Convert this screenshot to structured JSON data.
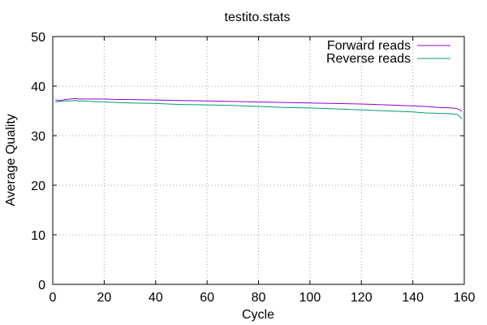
{
  "chart_data": {
    "type": "line",
    "title": "testito.stats",
    "xlabel": "Cycle",
    "ylabel": "Average Quality",
    "xlim": [
      0,
      160
    ],
    "ylim": [
      0,
      50
    ],
    "x_ticks": [
      0,
      20,
      40,
      60,
      80,
      100,
      120,
      140,
      160
    ],
    "y_ticks": [
      0,
      10,
      20,
      30,
      40,
      50
    ],
    "x_tick_labels": [
      "0",
      "20",
      "40",
      "60",
      "80",
      "100",
      "120",
      "140",
      "160"
    ],
    "y_tick_labels": [
      "0",
      "10",
      "20",
      "30",
      "40",
      "50"
    ],
    "grid": true,
    "legend_position": "top-right",
    "series": [
      {
        "name": "Forward reads",
        "color": "#9400d3",
        "x": [
          1,
          3,
          5,
          7,
          9,
          10,
          12,
          15,
          20,
          25,
          30,
          40,
          50,
          60,
          70,
          80,
          90,
          100,
          110,
          120,
          130,
          140,
          145,
          150,
          155,
          157,
          158,
          159
        ],
        "y": [
          37.2,
          37.1,
          37.3,
          37.4,
          37.5,
          37.4,
          37.4,
          37.4,
          37.4,
          37.3,
          37.3,
          37.2,
          37.1,
          37.0,
          36.9,
          36.8,
          36.7,
          36.6,
          36.5,
          36.4,
          36.2,
          36.0,
          35.9,
          35.7,
          35.6,
          35.5,
          35.3,
          34.9
        ]
      },
      {
        "name": "Reverse reads",
        "color": "#009e73",
        "x": [
          1,
          3,
          5,
          7,
          9,
          10,
          12,
          15,
          20,
          25,
          30,
          40,
          50,
          60,
          70,
          80,
          90,
          100,
          110,
          120,
          130,
          140,
          145,
          150,
          155,
          157,
          158,
          159
        ],
        "y": [
          36.8,
          36.9,
          37.0,
          37.0,
          37.1,
          37.0,
          37.0,
          36.9,
          36.8,
          36.7,
          36.6,
          36.5,
          36.3,
          36.2,
          36.1,
          35.9,
          35.7,
          35.6,
          35.4,
          35.2,
          35.0,
          34.8,
          34.6,
          34.5,
          34.4,
          34.3,
          34.0,
          33.4
        ]
      }
    ]
  }
}
